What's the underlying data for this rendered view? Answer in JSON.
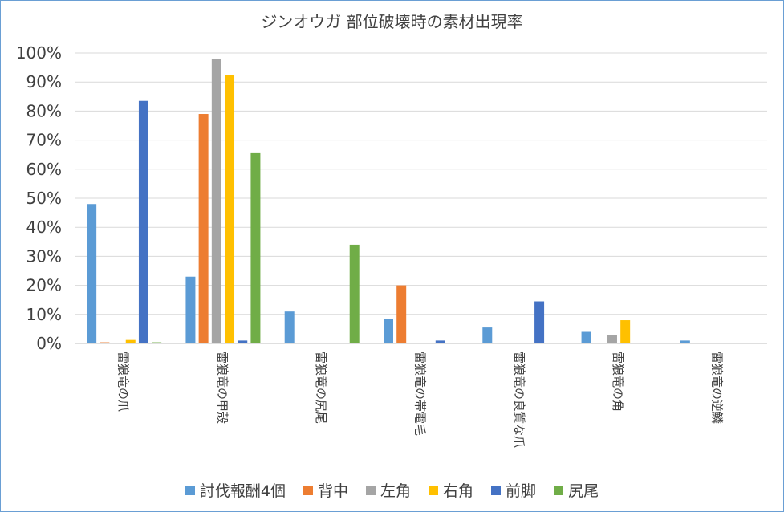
{
  "chart_data": {
    "type": "bar",
    "title": "ジンオウガ 部位破壊時の素材出現率",
    "categories": [
      "雷狼竜の爪",
      "雷狼竜の甲殻",
      "雷狼竜の尻尾",
      "雷狼竜の帯電毛",
      "雷狼竜の良質な爪",
      "雷狼竜の角",
      "雷狼竜の逆鱗"
    ],
    "series": [
      {
        "name": "討伐報酬4個",
        "color": "#5b9bd5",
        "values": [
          48,
          23,
          11,
          8.5,
          5.5,
          4,
          1
        ]
      },
      {
        "name": "背中",
        "color": "#ed7d31",
        "values": [
          0.4,
          79,
          0,
          20,
          0,
          0,
          0
        ]
      },
      {
        "name": "左角",
        "color": "#a5a5a5",
        "values": [
          0,
          98,
          0,
          0,
          0,
          3,
          0
        ]
      },
      {
        "name": "右角",
        "color": "#ffc000",
        "values": [
          1.2,
          92.5,
          0,
          0,
          0,
          8,
          0
        ]
      },
      {
        "name": "前脚",
        "color": "#4472c4",
        "values": [
          83.5,
          1,
          0,
          1,
          14.5,
          0,
          0
        ]
      },
      {
        "name": "尻尾",
        "color": "#70ad47",
        "values": [
          0.4,
          65.5,
          34,
          0,
          0,
          0,
          0
        ]
      }
    ],
    "ylim": [
      0,
      100
    ],
    "yticks": [
      "0%",
      "10%",
      "20%",
      "30%",
      "40%",
      "50%",
      "60%",
      "70%",
      "80%",
      "90%",
      "100%"
    ],
    "grid": true,
    "legend_position": "bottom"
  }
}
